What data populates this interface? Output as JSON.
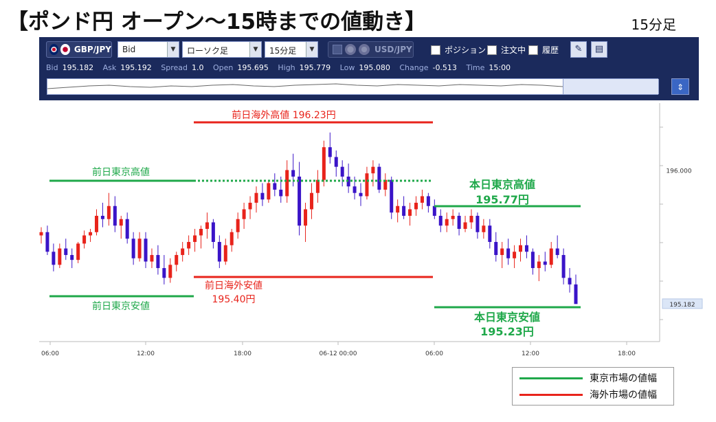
{
  "title": "【ポンド円 オープン～15時までの値動き】",
  "timeframe": "15分足",
  "toolbar": {
    "pair": "GBP/JPY",
    "price_type": "Bid",
    "chart_type": "ローソク足",
    "interval": "15分足",
    "secondary_pair": "USD/JPY",
    "checkboxes": [
      "ポジション",
      "注文中",
      "履歴"
    ],
    "stats": [
      {
        "k": "Bid",
        "v": "195.182"
      },
      {
        "k": "Ask",
        "v": "195.192"
      },
      {
        "k": "Spread",
        "v": "1.0"
      },
      {
        "k": "Open",
        "v": "195.695"
      },
      {
        "k": "High",
        "v": "195.779"
      },
      {
        "k": "Low",
        "v": "195.080"
      },
      {
        "k": "Change",
        "v": "-0.513"
      },
      {
        "k": "Time",
        "v": "15:00"
      }
    ]
  },
  "chart_data": {
    "type": "candlestick",
    "x_ticks": [
      "06:00",
      "12:00",
      "18:00",
      "06-12 00:00",
      "06:00",
      "12:00",
      "18:00"
    ],
    "y_ticks": [
      "196.000"
    ],
    "current_price_label": "195.182",
    "ylim": [
      194.95,
      196.41
    ],
    "up_color": "#e8231b",
    "down_color": "#3a14c8",
    "candles_approx": [
      [
        195.6,
        195.65,
        195.55,
        195.62
      ],
      [
        195.62,
        195.66,
        195.48,
        195.5
      ],
      [
        195.5,
        195.55,
        195.38,
        195.42
      ],
      [
        195.42,
        195.55,
        195.4,
        195.52
      ],
      [
        195.52,
        195.58,
        195.45,
        195.48
      ],
      [
        195.48,
        195.52,
        195.4,
        195.45
      ],
      [
        195.45,
        195.56,
        195.43,
        195.55
      ],
      [
        195.55,
        195.63,
        195.52,
        195.6
      ],
      [
        195.6,
        195.64,
        195.56,
        195.62
      ],
      [
        195.62,
        195.76,
        195.6,
        195.72
      ],
      [
        195.72,
        195.8,
        195.65,
        195.7
      ],
      [
        195.7,
        195.86,
        195.66,
        195.78
      ],
      [
        195.78,
        195.84,
        195.62,
        195.66
      ],
      [
        195.66,
        195.72,
        195.58,
        195.7
      ],
      [
        195.7,
        195.74,
        195.55,
        195.58
      ],
      [
        195.58,
        195.62,
        195.42,
        195.46
      ],
      [
        195.46,
        195.62,
        195.44,
        195.58
      ],
      [
        195.58,
        195.62,
        195.4,
        195.44
      ],
      [
        195.44,
        195.52,
        195.4,
        195.48
      ],
      [
        195.48,
        195.54,
        195.36,
        195.4
      ],
      [
        195.4,
        195.48,
        195.3,
        195.34
      ],
      [
        195.34,
        195.46,
        195.31,
        195.42
      ],
      [
        195.42,
        195.5,
        195.38,
        195.48
      ],
      [
        195.48,
        195.56,
        195.44,
        195.52
      ],
      [
        195.52,
        195.6,
        195.48,
        195.56
      ],
      [
        195.56,
        195.64,
        195.5,
        195.6
      ],
      [
        195.6,
        195.66,
        195.52,
        195.64
      ],
      [
        195.64,
        195.74,
        195.58,
        195.68
      ],
      [
        195.68,
        195.7,
        195.52,
        195.56
      ],
      [
        195.56,
        195.6,
        195.4,
        195.44
      ],
      [
        195.44,
        195.58,
        195.42,
        195.54
      ],
      [
        195.54,
        195.64,
        195.5,
        195.62
      ],
      [
        195.62,
        195.74,
        195.58,
        195.7
      ],
      [
        195.7,
        195.8,
        195.64,
        195.76
      ],
      [
        195.76,
        195.84,
        195.7,
        195.8
      ],
      [
        195.8,
        195.9,
        195.74,
        195.86
      ],
      [
        195.86,
        195.92,
        195.78,
        195.82
      ],
      [
        195.82,
        195.94,
        195.8,
        195.92
      ],
      [
        195.92,
        195.98,
        195.84,
        195.88
      ],
      [
        195.88,
        195.96,
        195.8,
        195.84
      ],
      [
        195.84,
        196.06,
        195.8,
        196.0
      ],
      [
        196.0,
        196.1,
        195.9,
        195.96
      ],
      [
        195.96,
        196.05,
        195.6,
        195.66
      ],
      [
        195.66,
        195.8,
        195.56,
        195.76
      ],
      [
        195.76,
        195.92,
        195.7,
        195.86
      ],
      [
        195.86,
        196.0,
        195.8,
        195.94
      ],
      [
        195.94,
        196.18,
        195.9,
        196.14
      ],
      [
        196.14,
        196.23,
        196.04,
        196.08
      ],
      [
        196.08,
        196.12,
        195.96,
        196.02
      ],
      [
        196.02,
        196.06,
        195.9,
        195.96
      ],
      [
        195.96,
        196.04,
        195.86,
        195.9
      ],
      [
        195.9,
        195.96,
        195.82,
        195.86
      ],
      [
        195.86,
        195.92,
        195.78,
        195.84
      ],
      [
        195.84,
        196.02,
        195.82,
        195.98
      ],
      [
        195.98,
        196.06,
        195.9,
        196.02
      ],
      [
        196.02,
        196.04,
        195.86,
        195.88
      ],
      [
        195.88,
        195.98,
        195.84,
        195.94
      ],
      [
        195.94,
        195.96,
        195.7,
        195.74
      ],
      [
        195.74,
        195.82,
        195.68,
        195.78
      ],
      [
        195.78,
        195.84,
        195.7,
        195.72
      ],
      [
        195.72,
        195.8,
        195.66,
        195.76
      ],
      [
        195.76,
        195.84,
        195.72,
        195.8
      ],
      [
        195.8,
        195.88,
        195.76,
        195.84
      ],
      [
        195.84,
        195.86,
        195.74,
        195.78
      ],
      [
        195.78,
        195.82,
        195.7,
        195.72
      ],
      [
        195.72,
        195.76,
        195.62,
        195.66
      ],
      [
        195.66,
        195.74,
        195.62,
        195.7
      ],
      [
        195.7,
        195.76,
        195.66,
        195.72
      ],
      [
        195.72,
        195.74,
        195.6,
        195.64
      ],
      [
        195.64,
        195.72,
        195.62,
        195.68
      ],
      [
        195.68,
        195.76,
        195.64,
        195.72
      ],
      [
        195.72,
        195.74,
        195.58,
        195.62
      ],
      [
        195.62,
        195.7,
        195.58,
        195.66
      ],
      [
        195.66,
        195.7,
        195.52,
        195.56
      ],
      [
        195.56,
        195.62,
        195.44,
        195.48
      ],
      [
        195.48,
        195.56,
        195.4,
        195.52
      ],
      [
        195.52,
        195.58,
        195.42,
        195.46
      ],
      [
        195.46,
        195.54,
        195.4,
        195.5
      ],
      [
        195.5,
        195.58,
        195.44,
        195.54
      ],
      [
        195.54,
        195.6,
        195.46,
        195.5
      ],
      [
        195.5,
        195.52,
        195.36,
        195.4
      ],
      [
        195.4,
        195.48,
        195.32,
        195.44
      ],
      [
        195.44,
        195.5,
        195.38,
        195.42
      ],
      [
        195.42,
        195.56,
        195.4,
        195.52
      ],
      [
        195.52,
        195.6,
        195.46,
        195.48
      ],
      [
        195.48,
        195.52,
        195.3,
        195.34
      ],
      [
        195.34,
        195.4,
        195.25,
        195.3
      ],
      [
        195.3,
        195.36,
        195.23,
        195.18
      ]
    ],
    "annotations": [
      {
        "label": "前日海外高値 196.23円",
        "value": 196.23,
        "color": "#e8231b"
      },
      {
        "label": "前日東京高値",
        "value": 195.8,
        "color": "#1fa84a",
        "dotted_extension": true
      },
      {
        "label": "本日東京高値",
        "value_label": "195.77円",
        "value": 195.77,
        "color": "#1fa84a"
      },
      {
        "label": "前日海外安値",
        "value_label": "195.40円",
        "value": 195.4,
        "color": "#e8231b"
      },
      {
        "label": "前日東京安値",
        "value": 195.36,
        "color": "#1fa84a"
      },
      {
        "label": "本日東京安値",
        "value_label": "195.23円",
        "value": 195.23,
        "color": "#1fa84a"
      }
    ]
  },
  "legend": [
    {
      "label": "東京市場の値幅",
      "color": "#1fa84a"
    },
    {
      "label": "海外市場の値幅",
      "color": "#e8231b"
    }
  ]
}
